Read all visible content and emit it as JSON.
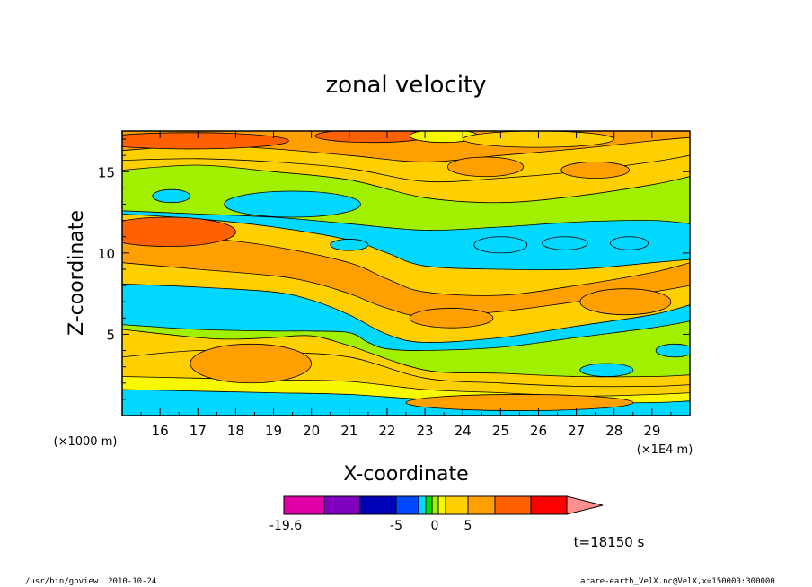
{
  "chart_data": {
    "type": "heatmap",
    "title": "zonal velocity",
    "xlabel": "X-coordinate",
    "ylabel": "Z-coordinate",
    "x_unit": "(×1E4 m)",
    "y_unit": "(×1000 m)",
    "xlim": [
      15,
      30
    ],
    "ylim": [
      0,
      17.5
    ],
    "x_ticks": [
      "16",
      "17",
      "18",
      "19",
      "20",
      "21",
      "22",
      "23",
      "24",
      "25",
      "26",
      "27",
      "28",
      "29"
    ],
    "y_ticks": [
      "5",
      "10",
      "15"
    ],
    "colorbar": {
      "labels": [
        "-19.6",
        "-5",
        "0",
        "5"
      ],
      "label_values": [
        -19.6,
        -5,
        0,
        5
      ],
      "range": [
        -19.6,
        12
      ],
      "colors": [
        "#e000a8",
        "#8000c0",
        "#0000b8",
        "#0048ff",
        "#00d8ff",
        "#00e000",
        "#a0f000",
        "#f8f800",
        "#ffd000",
        "#ffa000",
        "#ff6000",
        "#ff0000"
      ],
      "over_color": "#ff9090"
    },
    "time_label": "t=18150 s",
    "bands": [
      {
        "x": [
          15,
          17,
          19,
          21,
          23,
          25,
          27,
          29,
          30
        ],
        "y": [
          1.6,
          1.5,
          1.4,
          1.3,
          1.0,
          0.9,
          0.8,
          0.8,
          0.9
        ],
        "value": -9
      },
      {
        "x": [
          15,
          17,
          19,
          21,
          23,
          25,
          27,
          29,
          30
        ],
        "y": [
          2.4,
          2.3,
          2.2,
          2.1,
          1.6,
          1.4,
          1.2,
          1.3,
          1.4
        ],
        "value": 0.5
      },
      {
        "x": [
          15,
          17,
          19,
          21,
          23,
          25,
          27,
          29,
          30
        ],
        "y": [
          3.6,
          4.0,
          3.9,
          3.6,
          2.3,
          2.0,
          1.8,
          1.8,
          1.9
        ],
        "value": 2.5
      },
      {
        "x": [
          15,
          17,
          18,
          19,
          20,
          21,
          23,
          25,
          27,
          29,
          30
        ],
        "y": [
          5.3,
          4.8,
          4.7,
          4.8,
          4.9,
          4.3,
          2.8,
          2.6,
          2.4,
          2.4,
          2.5
        ],
        "value": 1.5
      },
      {
        "x": [
          15,
          17,
          19,
          20,
          21,
          21.5,
          22,
          23,
          25,
          27,
          29,
          30
        ],
        "y": [
          5.6,
          5.3,
          5.2,
          5.2,
          5.1,
          4.5,
          4.1,
          4.0,
          4.2,
          4.8,
          5.4,
          5.8
        ],
        "value": -2
      },
      {
        "x": [
          15,
          17,
          19,
          20,
          21,
          22,
          23,
          25,
          27,
          29,
          30
        ],
        "y": [
          8.1,
          7.9,
          7.6,
          7.1,
          6.2,
          5.0,
          4.5,
          4.8,
          5.5,
          6.2,
          6.8
        ],
        "value": -7
      },
      {
        "x": [
          15,
          17,
          19,
          20,
          21,
          22,
          23,
          25,
          27,
          29,
          30
        ],
        "y": [
          9.4,
          9.0,
          8.6,
          8.2,
          7.5,
          6.6,
          6.1,
          6.4,
          7.0,
          7.6,
          8.0
        ],
        "value": 2.5
      },
      {
        "x": [
          15,
          17,
          19,
          21,
          22,
          23,
          25,
          27,
          29,
          30
        ],
        "y": [
          11.6,
          11.0,
          10.4,
          9.4,
          8.4,
          7.6,
          7.4,
          8.0,
          8.8,
          9.4
        ],
        "value": 6
      },
      {
        "x": [
          15,
          17,
          19,
          21,
          22,
          23,
          25,
          27,
          29,
          30
        ],
        "y": [
          12.4,
          12.1,
          11.6,
          10.8,
          10.0,
          9.2,
          9.0,
          9.0,
          9.4,
          9.6
        ],
        "value": 1.8
      },
      {
        "x": [
          15,
          17,
          19,
          21,
          23,
          25,
          27,
          29,
          30
        ],
        "y": [
          12.6,
          12.4,
          12.2,
          11.8,
          11.4,
          11.6,
          11.9,
          12.0,
          11.8
        ],
        "value": -7
      },
      {
        "x": [
          15,
          17,
          19,
          21,
          23,
          25,
          27,
          29,
          30
        ],
        "y": [
          15.1,
          15.4,
          15.0,
          14.5,
          13.4,
          13.1,
          13.5,
          14.2,
          14.7
        ],
        "value": -2
      },
      {
        "x": [
          15,
          17,
          19,
          21,
          23,
          25,
          27,
          29,
          30
        ],
        "y": [
          15.7,
          15.8,
          15.6,
          15.2,
          14.4,
          14.6,
          15.0,
          15.6,
          16.0
        ],
        "value": 1.5
      },
      {
        "x": [
          15,
          17,
          19,
          21,
          23,
          25,
          27,
          29,
          30
        ],
        "y": [
          16.3,
          16.6,
          16.4,
          16.0,
          15.6,
          16.0,
          16.4,
          16.9,
          17.1
        ],
        "value": 2.5
      },
      {
        "x": [
          15,
          17,
          19,
          21,
          23,
          25,
          27,
          29,
          30
        ],
        "y": [
          17.5,
          17.5,
          17.5,
          17.5,
          17.5,
          17.5,
          17.5,
          17.5,
          17.5
        ],
        "value": 6
      }
    ],
    "patches": [
      {
        "cx": 18.4,
        "cy": 3.2,
        "rx": 1.6,
        "ry": 1.2,
        "value": 6
      },
      {
        "cx": 23.7,
        "cy": 6.0,
        "rx": 1.1,
        "ry": 0.6,
        "value": 6
      },
      {
        "cx": 25.5,
        "cy": 0.8,
        "rx": 3.0,
        "ry": 0.5,
        "value": 6
      },
      {
        "cx": 16.2,
        "cy": 11.3,
        "rx": 1.8,
        "ry": 0.9,
        "value": 8
      },
      {
        "cx": 28.3,
        "cy": 7.0,
        "rx": 1.2,
        "ry": 0.8,
        "value": 6
      },
      {
        "cx": 16.8,
        "cy": 16.9,
        "rx": 2.6,
        "ry": 0.5,
        "value": 8
      },
      {
        "cx": 21.6,
        "cy": 17.2,
        "rx": 1.5,
        "ry": 0.4,
        "value": 8
      },
      {
        "cx": 23.5,
        "cy": 17.2,
        "rx": 0.9,
        "ry": 0.4,
        "value": 0.5
      },
      {
        "cx": 26.0,
        "cy": 17.0,
        "rx": 2.0,
        "ry": 0.5,
        "value": 1.8
      },
      {
        "cx": 24.6,
        "cy": 15.3,
        "rx": 1.0,
        "ry": 0.6,
        "value": 6
      },
      {
        "cx": 27.5,
        "cy": 15.1,
        "rx": 0.9,
        "ry": 0.5,
        "value": 6
      },
      {
        "cx": 19.5,
        "cy": 13.0,
        "rx": 1.8,
        "ry": 0.8,
        "value": -9
      },
      {
        "cx": 16.3,
        "cy": 13.5,
        "rx": 0.5,
        "ry": 0.4,
        "value": -9
      },
      {
        "cx": 25.0,
        "cy": 10.5,
        "rx": 0.7,
        "ry": 0.5,
        "value": -9
      },
      {
        "cx": 26.7,
        "cy": 10.6,
        "rx": 0.6,
        "ry": 0.4,
        "value": -9
      },
      {
        "cx": 28.4,
        "cy": 10.6,
        "rx": 0.5,
        "ry": 0.4,
        "value": -9
      },
      {
        "cx": 21.0,
        "cy": 10.5,
        "rx": 0.5,
        "ry": 0.35,
        "value": -9
      },
      {
        "cx": 27.8,
        "cy": 2.8,
        "rx": 0.7,
        "ry": 0.4,
        "value": -9
      },
      {
        "cx": 29.6,
        "cy": 4.0,
        "rx": 0.5,
        "ry": 0.4,
        "value": -9
      }
    ]
  },
  "footer": {
    "left": "/usr/bin/gpview  2010-10-24",
    "right": "arare-earth_VelX.nc@VelX,x=150000:300000"
  }
}
